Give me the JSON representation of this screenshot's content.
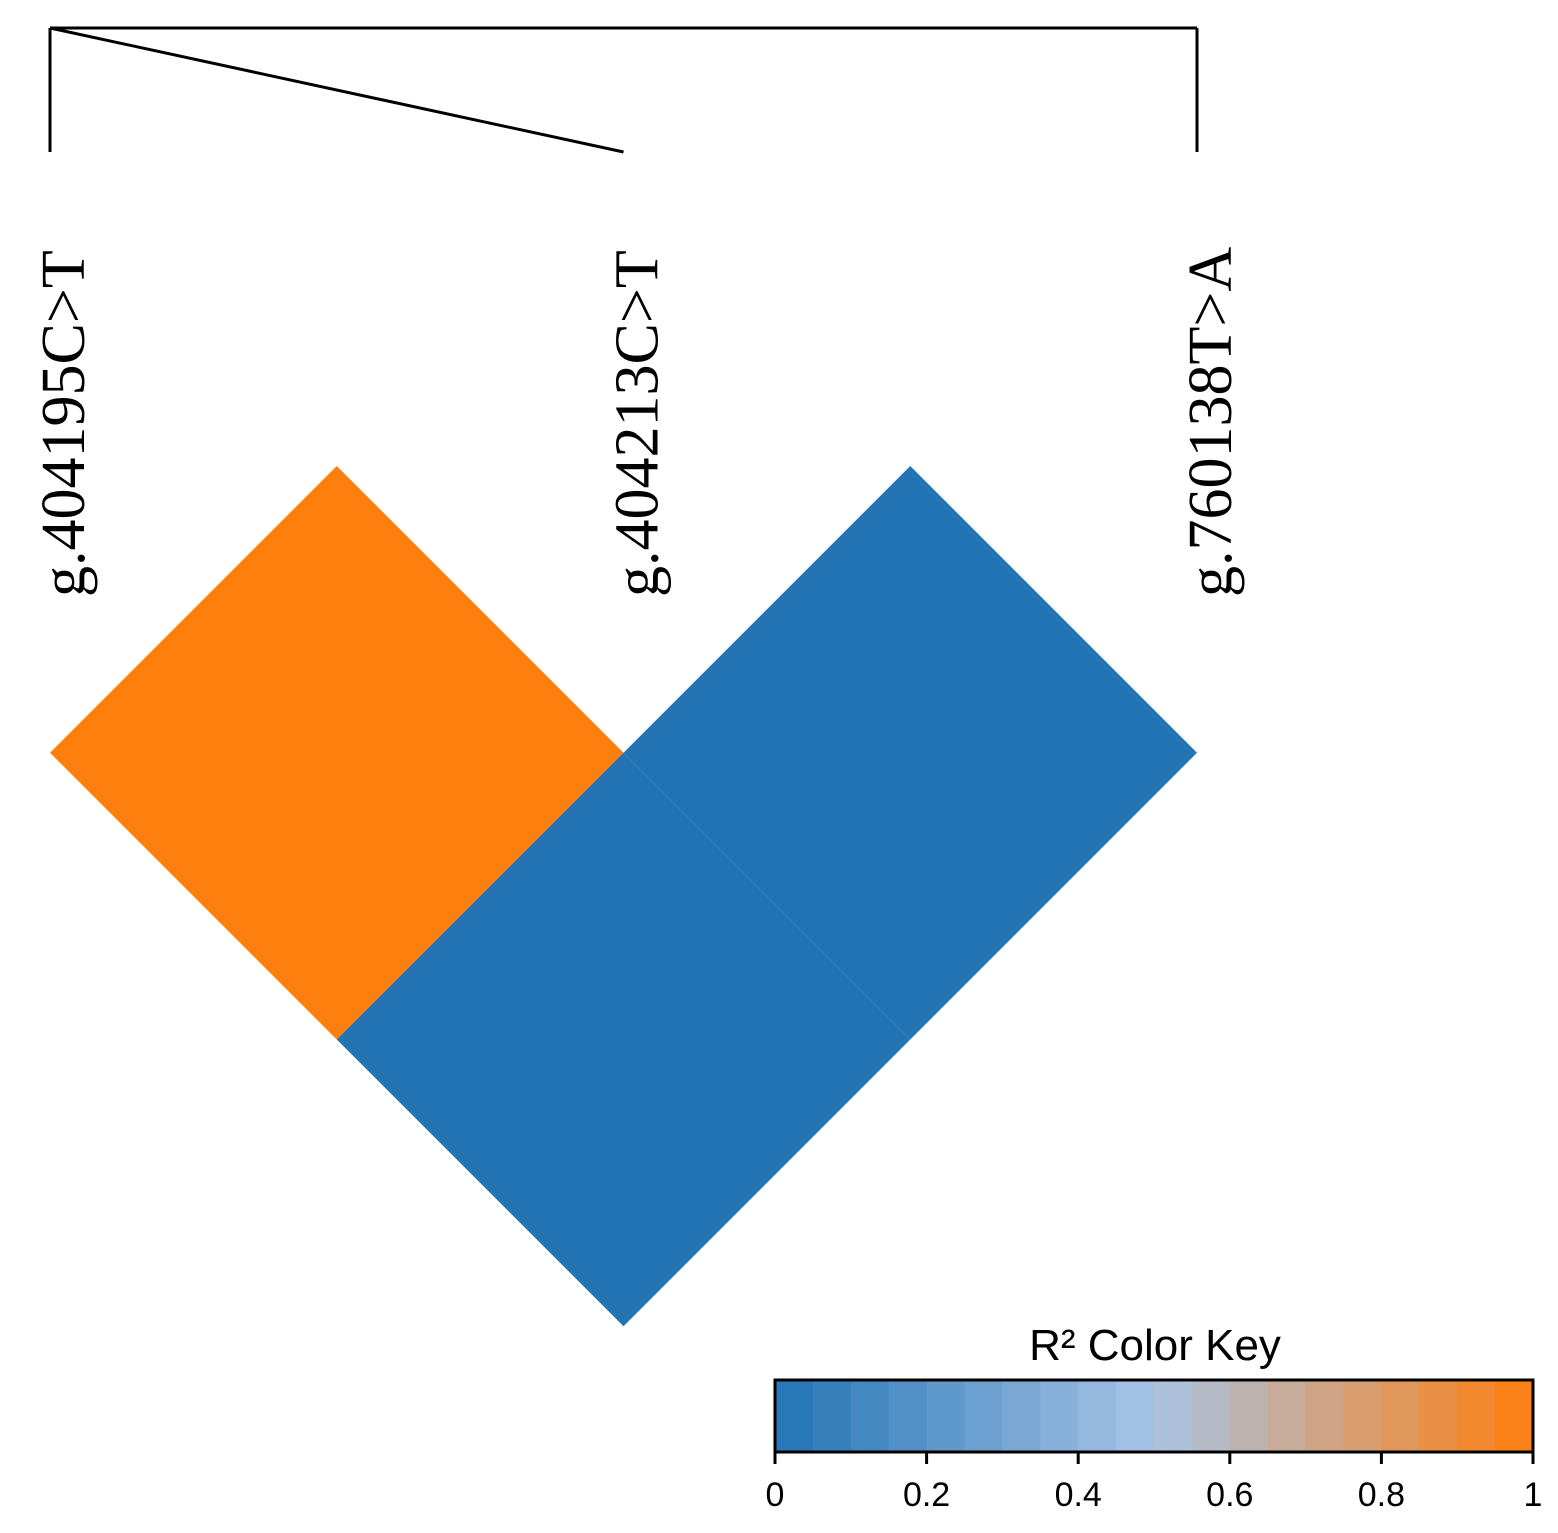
{
  "chart_data": {
    "type": "ld_heatmap",
    "snps": [
      "g.404195C>T",
      "g.404213C>T",
      "g.760138T>A"
    ],
    "positions": [
      404195,
      404213,
      760138
    ],
    "values": [
      [
        1,
        0
      ],
      [
        0
      ]
    ],
    "colors": [
      "#2274b4",
      "#a9c4e6",
      "#ff7f0e"
    ],
    "key_title": "R² Color Key",
    "key_lim": [
      0,
      1
    ],
    "key_ticks": [
      0,
      0.2,
      0.4,
      0.6,
      0.8,
      1
    ]
  }
}
